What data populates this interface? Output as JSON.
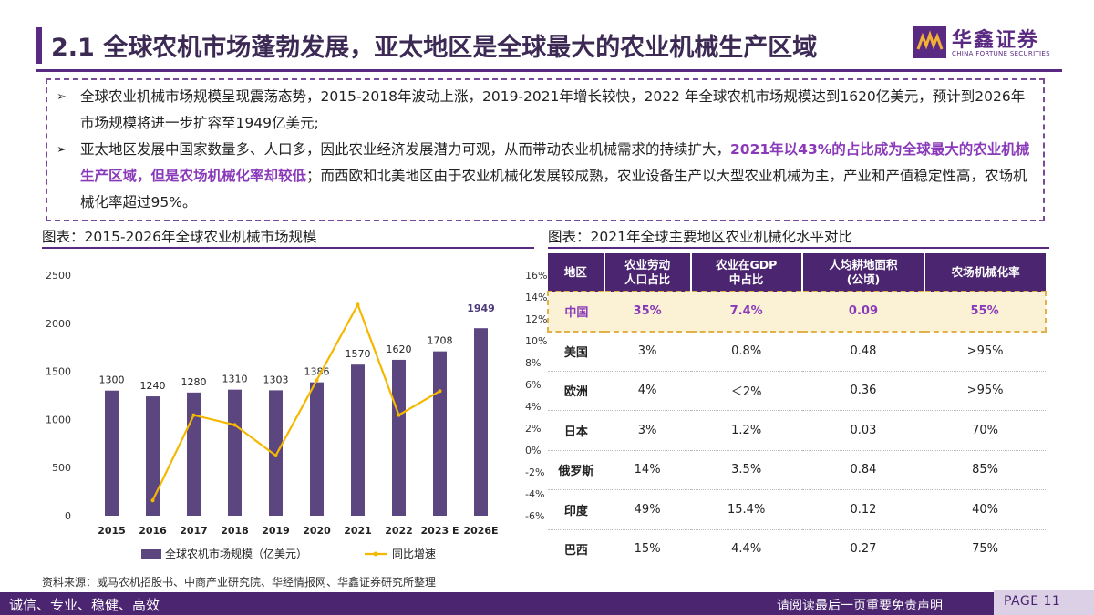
{
  "title": "2.1 全球农机市场蓬勃发展，亚太地区是全球最大的农业机械生产区域",
  "logo": {
    "cn": "华鑫证券",
    "en": "CHINA FORTUNE SECURITIES"
  },
  "bullets": {
    "b1_text": "全球农业机械市场规模呈现震荡态势，2015-2018年波动上涨，2019-2021年增长较快，2022 年全球农机市场规模达到1620亿美元，预计到2026年市场规模将进一步扩容至1949亿美元;",
    "b2_part1": "亚太地区发展中国家数量多、人口多，因此农业经济发展潜力可观，从而带动农业机械需求的持续扩大，",
    "b2_highlight": "2021年以43%的占比成为全球最大的农业机械生产区域，但是农场机械化率却较低",
    "b2_part2": "；而西欧和北美地区由于农业机械化发展较成熟，农业设备生产以大型农业机械为主，产业和产值稳定性高，农场机械化率超过95%。",
    "marker": "➢"
  },
  "chart_title": "图表：2015-2026年全球农业机械市场规模",
  "table_title": "图表：2021年全球主要地区农业机械化水平对比",
  "source": "资料来源：威马农机招股书、中商产业研究院、华经情报网、华鑫证券研究所整理",
  "chart_data": {
    "type": "bar+line",
    "categories": [
      "2015",
      "2016",
      "2017",
      "2018",
      "2019",
      "2020",
      "2021",
      "2022",
      "2023 E",
      "2026E"
    ],
    "series": [
      {
        "name": "全球农机市场规模（亿美元）",
        "type": "bar",
        "axis": "left",
        "values": [
          1300,
          1240,
          1280,
          1310,
          1303,
          1386,
          1570,
          1620,
          1708,
          1949
        ]
      },
      {
        "name": "同比增速",
        "type": "line",
        "axis": "right",
        "values": [
          null,
          -4.6,
          3.2,
          2.3,
          -0.5,
          6.4,
          13.3,
          3.2,
          5.4,
          null
        ]
      }
    ],
    "y_left": {
      "min": 0,
      "max": 2500,
      "ticks": [
        0,
        500,
        1000,
        1500,
        2000,
        2500
      ]
    },
    "y_right": {
      "min": -6,
      "max": 16,
      "ticks": [
        "-6%",
        "-4%",
        "-2%",
        "0%",
        "2%",
        "4%",
        "6%",
        "8%",
        "10%",
        "12%",
        "14%",
        "16%"
      ]
    },
    "highlight_label": "1949",
    "legend_position": "bottom",
    "colors": {
      "bar": "#5b4680",
      "line": "#f5b800",
      "highlight_label": "#4b3a7a"
    }
  },
  "table": {
    "headers": [
      "地区",
      "农业劳动\n人口占比",
      "农业在GDP\n中占比",
      "人均耕地面积\n(公顷)",
      "农场机械化率"
    ],
    "rows": [
      [
        "中国",
        "35%",
        "7.4%",
        "0.09",
        "55%"
      ],
      [
        "美国",
        "3%",
        "0.8%",
        "0.48",
        ">95%"
      ],
      [
        "欧洲",
        "4%",
        "＜2%",
        "0.36",
        ">95%"
      ],
      [
        "日本",
        "3%",
        "1.2%",
        "0.03",
        "70%"
      ],
      [
        "俄罗斯",
        "14%",
        "3.5%",
        "0.84",
        "85%"
      ],
      [
        "印度",
        "49%",
        "15.4%",
        "0.12",
        "40%"
      ],
      [
        "巴西",
        "15%",
        "4.4%",
        "0.27",
        "75%"
      ]
    ],
    "highlight_row": 0
  },
  "footer": {
    "left": "诚信、专业、稳健、高效",
    "right": "请阅读最后一页重要免责声明",
    "page": "PAGE 11"
  },
  "colors": {
    "brand": "#4b2570",
    "accent": "#8a3ab9"
  }
}
